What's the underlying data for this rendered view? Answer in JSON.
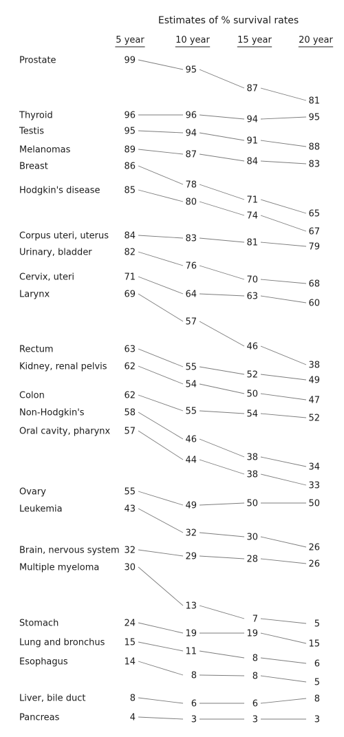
{
  "chart_data": {
    "type": "line",
    "title": "Estimates of % survival rates",
    "columns": [
      "5 year",
      "10 year",
      "15 year",
      "20 year"
    ],
    "series": [
      {
        "name": "Prostate",
        "values": [
          99,
          95,
          87,
          81
        ]
      },
      {
        "name": "Thyroid",
        "values": [
          96,
          96,
          94,
          95
        ]
      },
      {
        "name": "Testis",
        "values": [
          95,
          94,
          91,
          88
        ]
      },
      {
        "name": "Melanomas",
        "values": [
          89,
          87,
          84,
          83
        ]
      },
      {
        "name": "Breast",
        "values": [
          86,
          78,
          71,
          65
        ]
      },
      {
        "name": "Hodgkin's disease",
        "values": [
          85,
          80,
          74,
          67
        ]
      },
      {
        "name": "Corpus uteri, uterus",
        "values": [
          84,
          83,
          81,
          79
        ]
      },
      {
        "name": "Urinary, bladder",
        "values": [
          82,
          76,
          70,
          68
        ]
      },
      {
        "name": "Cervix, uteri",
        "values": [
          71,
          64,
          63,
          60
        ]
      },
      {
        "name": "Larynx",
        "values": [
          69,
          57,
          46,
          38
        ]
      },
      {
        "name": "Rectum",
        "values": [
          63,
          55,
          52,
          49
        ]
      },
      {
        "name": "Kidney, renal pelvis",
        "values": [
          62,
          54,
          50,
          47
        ]
      },
      {
        "name": "Colon",
        "values": [
          62,
          55,
          54,
          52
        ]
      },
      {
        "name": "Non-Hodgkin's",
        "values": [
          58,
          46,
          38,
          34
        ]
      },
      {
        "name": "Oral cavity, pharynx",
        "values": [
          57,
          44,
          38,
          33
        ]
      },
      {
        "name": "Ovary",
        "values": [
          55,
          49,
          50,
          50
        ]
      },
      {
        "name": "Leukemia",
        "values": [
          43,
          32,
          30,
          26
        ]
      },
      {
        "name": "Brain, nervous system",
        "values": [
          32,
          29,
          28,
          26
        ]
      },
      {
        "name": "Multiple myeloma",
        "values": [
          30,
          13,
          7,
          5
        ]
      },
      {
        "name": "Stomach",
        "values": [
          24,
          19,
          19,
          15
        ]
      },
      {
        "name": "Lung and bronchus",
        "values": [
          15,
          11,
          8,
          6
        ]
      },
      {
        "name": "Esophagus",
        "values": [
          14,
          8,
          8,
          5
        ]
      },
      {
        "name": "Liver, bile duct",
        "values": [
          8,
          6,
          6,
          8
        ]
      },
      {
        "name": "Pancreas",
        "values": [
          4,
          3,
          3,
          3
        ]
      }
    ]
  }
}
